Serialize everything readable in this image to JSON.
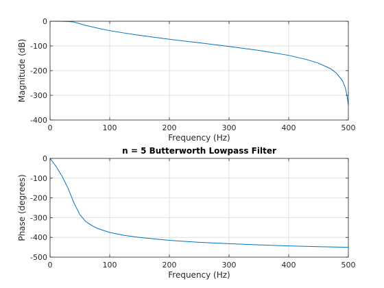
{
  "chart_data": [
    {
      "type": "line",
      "title": "",
      "xlabel": "Frequency (Hz)",
      "ylabel": "Magnitude (dB)",
      "xlim": [
        0,
        500
      ],
      "ylim": [
        -400,
        0
      ],
      "xticks": [
        0,
        100,
        200,
        300,
        400,
        500
      ],
      "yticks": [
        0,
        -100,
        -200,
        -300,
        -400
      ],
      "grid": true,
      "series": [
        {
          "color": "#0072BD",
          "x": [
            0,
            20,
            30,
            40,
            50,
            60,
            80,
            100,
            120,
            150,
            200,
            250,
            300,
            350,
            400,
            430,
            450,
            470,
            480,
            490,
            495,
            498,
            500
          ],
          "y": [
            0,
            -0.2,
            -1,
            -3,
            -10,
            -17,
            -28,
            -38,
            -46,
            -57,
            -73,
            -87,
            -102,
            -118,
            -138,
            -155,
            -170,
            -192,
            -210,
            -240,
            -270,
            -305,
            -340
          ]
        }
      ]
    },
    {
      "type": "line",
      "title": "n = 5 Butterworth Lowpass Filter",
      "xlabel": "Frequency (Hz)",
      "ylabel": "Phase (degrees)",
      "xlim": [
        0,
        500
      ],
      "ylim": [
        -500,
        0
      ],
      "xticks": [
        0,
        100,
        200,
        300,
        400,
        500
      ],
      "yticks": [
        0,
        -100,
        -200,
        -300,
        -400,
        -500
      ],
      "grid": true,
      "series": [
        {
          "color": "#0072BD",
          "x": [
            0,
            10,
            20,
            30,
            40,
            50,
            60,
            70,
            80,
            100,
            125,
            150,
            200,
            250,
            300,
            350,
            400,
            450,
            500
          ],
          "y": [
            0,
            -40,
            -90,
            -150,
            -225,
            -285,
            -320,
            -340,
            -355,
            -375,
            -390,
            -400,
            -415,
            -425,
            -432,
            -438,
            -443,
            -447,
            -450
          ]
        }
      ]
    }
  ]
}
